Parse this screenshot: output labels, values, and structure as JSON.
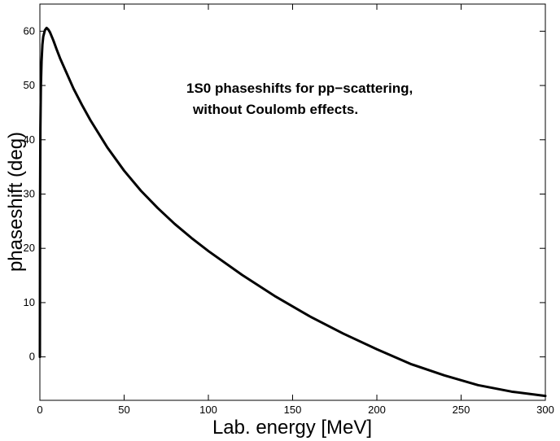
{
  "chart_data": {
    "type": "line",
    "title": "",
    "xlabel": "Lab. energy [MeV]",
    "ylabel": "phaseshift (deg)",
    "xlim": [
      0,
      300
    ],
    "ylim": [
      -8,
      65
    ],
    "xticks": [
      0,
      50,
      100,
      150,
      200,
      250,
      300
    ],
    "yticks": [
      0,
      10,
      20,
      30,
      40,
      50,
      60
    ],
    "grid": false,
    "annotation": [
      "1S0 phaseshifts for pp−scattering,",
      "without Coulomb effects."
    ],
    "series": [
      {
        "name": "1S0 pp phaseshift",
        "color": "#000000",
        "x": [
          0,
          0.1,
          0.3,
          0.6,
          1,
          1.5,
          2,
          3,
          4,
          5,
          6,
          8,
          10,
          12,
          15,
          20,
          25,
          30,
          40,
          50,
          60,
          70,
          80,
          90,
          100,
          120,
          140,
          160,
          180,
          200,
          220,
          240,
          260,
          280,
          300
        ],
        "y": [
          0,
          28,
          42,
          50,
          54.5,
          57.5,
          59,
          60.2,
          60.6,
          60.3,
          59.8,
          58.3,
          56.6,
          55,
          52.9,
          49.4,
          46.4,
          43.6,
          38.6,
          34.3,
          30.6,
          27.4,
          24.5,
          21.9,
          19.5,
          15.1,
          11.1,
          7.5,
          4.3,
          1.4,
          -1.3,
          -3.4,
          -5.2,
          -6.4,
          -7.2
        ]
      }
    ]
  }
}
